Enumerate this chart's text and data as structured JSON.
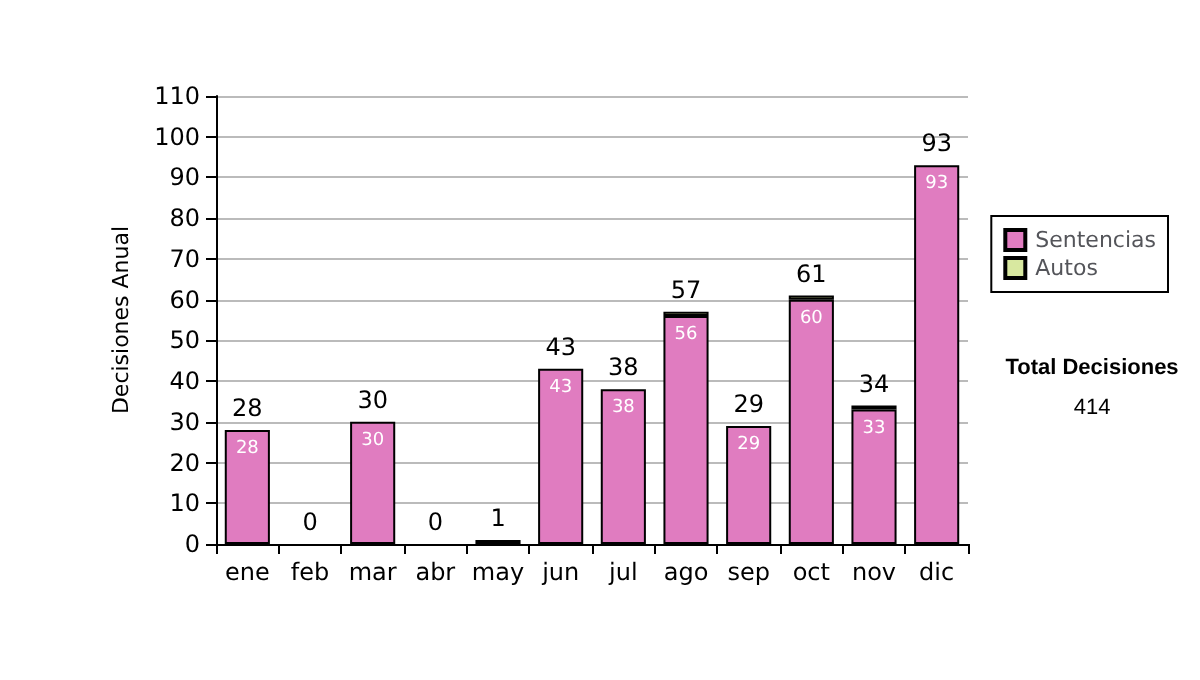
{
  "chart_data": {
    "type": "bar",
    "stacked": true,
    "ylabel": "Decisiones Anual",
    "categories": [
      "ene",
      "feb",
      "mar",
      "abr",
      "may",
      "jun",
      "jul",
      "ago",
      "sep",
      "oct",
      "nov",
      "dic"
    ],
    "series": [
      {
        "name": "Sentencias",
        "color": "#e07cc0",
        "values": [
          28,
          0,
          30,
          0,
          1,
          43,
          38,
          56,
          29,
          60,
          33,
          93
        ],
        "value_labels": [
          "28",
          null,
          "30",
          null,
          null,
          "43",
          "38",
          "56",
          "29",
          "60",
          "33",
          "93"
        ]
      },
      {
        "name": "Autos",
        "color": "#d8e8a0",
        "values": [
          0,
          0,
          0,
          0,
          0,
          0,
          0,
          1,
          0,
          1,
          1,
          0
        ]
      }
    ],
    "totals": [
      "28",
      "0",
      "30",
      "0",
      "1",
      "43",
      "38",
      "57",
      "29",
      "61",
      "34",
      "93"
    ],
    "ylim": [
      0,
      110
    ],
    "yticks": [
      0,
      10,
      20,
      30,
      40,
      50,
      60,
      70,
      80,
      90,
      100,
      110
    ],
    "grid": "y",
    "legend": "right",
    "annotations": [
      "Total Decisiones",
      "414"
    ]
  }
}
